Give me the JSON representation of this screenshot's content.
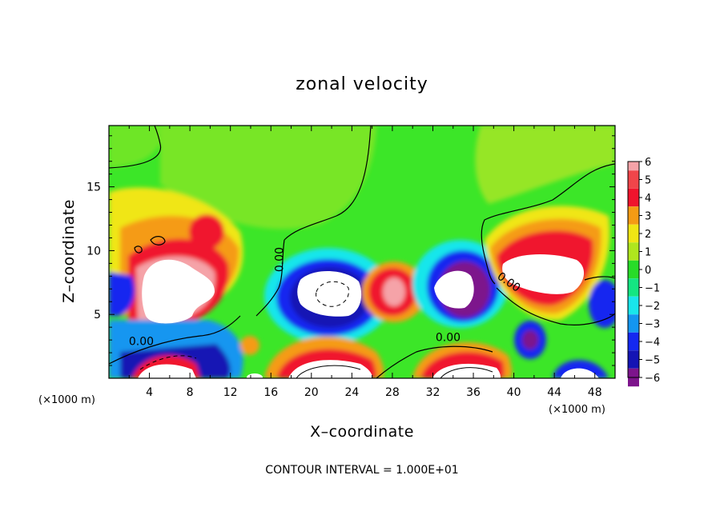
{
  "chart_data": {
    "type": "heatmap",
    "title": "zonal velocity",
    "xlabel": "X–coordinate",
    "ylabel": "Z–coordinate",
    "x_unit_label": "(×1000 m)",
    "y_unit_label": "(×1000 m)",
    "xlim": [
      0,
      50
    ],
    "ylim": [
      0,
      19.8
    ],
    "x_ticks": [
      4,
      8,
      12,
      16,
      20,
      24,
      28,
      32,
      36,
      40,
      44,
      48
    ],
    "y_ticks": [
      5,
      10,
      15
    ],
    "colorbar": {
      "ticks": [
        6,
        5,
        4,
        3,
        2,
        1,
        0,
        -1,
        -2,
        -3,
        -4,
        -5,
        -6
      ],
      "range": [
        -6,
        6
      ],
      "colors": {
        "gt6": "#ffffff",
        "6": "#f5a3a8",
        "5": "#f0454a",
        "4": "#f0142d",
        "3": "#f59b14",
        "2": "#f0e614",
        "1": "#afe61e",
        "0": "#28dc28",
        "-1": "#14e682",
        "-2": "#19e6eb",
        "-3": "#1496f0",
        "-4": "#1428f0",
        "-5": "#1414b4",
        "-6": "#7d148c"
      }
    },
    "contour_labels": [
      {
        "x": 3.2,
        "z": 2.6,
        "text": "0.00"
      },
      {
        "x": 33.5,
        "z": 2.9,
        "text": "0.00"
      },
      {
        "x": 17.2,
        "z": 9.3,
        "text": "0.00"
      },
      {
        "x": 39.3,
        "z": 7.3,
        "text": "0.00"
      }
    ],
    "annotation": "CONTOUR INTERVAL = 1.000E+01",
    "grid": false,
    "colorbar_position": "right"
  }
}
